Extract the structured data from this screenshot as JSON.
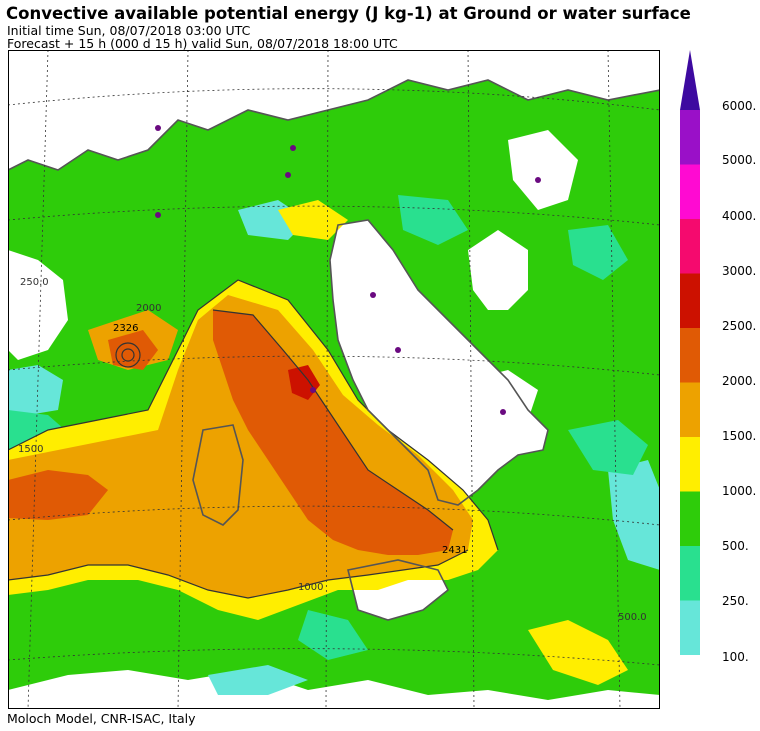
{
  "header": {
    "title": "Convective available potential energy (J kg-1) at Ground or water surface",
    "initial_time": "Initial time  Sun, 08/07/2018  03:00 UTC",
    "forecast": "Forecast  +  15 h  (000 d 15 h)  valid Sun, 08/07/2018 18:00 UTC"
  },
  "footer": {
    "credit": "Moloch Model, CNR-ISAC, Italy"
  },
  "legend": {
    "levels": [
      {
        "label": "100.",
        "color": "#66e6d9"
      },
      {
        "label": "250.",
        "color": "#29e08f"
      },
      {
        "label": "500.",
        "color": "#2ecc0a"
      },
      {
        "label": "1000.",
        "color": "#ffee00"
      },
      {
        "label": "1500.",
        "color": "#eda200"
      },
      {
        "label": "2000.",
        "color": "#e05a05"
      },
      {
        "label": "2500.",
        "color": "#cc1100"
      },
      {
        "label": "3000.",
        "color": "#f50a6e"
      },
      {
        "label": "4000.",
        "color": "#ff0ad2"
      },
      {
        "label": "5000.",
        "color": "#9a10c8"
      },
      {
        "label": "6000.",
        "color": "#3d0aa0"
      }
    ]
  },
  "map_labels": {
    "max_west": "2326",
    "max_south": "2431",
    "c_1500": "1500",
    "c_2000": "2000",
    "c_1000": "1000",
    "c_500": "500.0",
    "c_250": "250.0"
  },
  "colors": {
    "sea_border": "#555555",
    "grid": "#333333"
  }
}
